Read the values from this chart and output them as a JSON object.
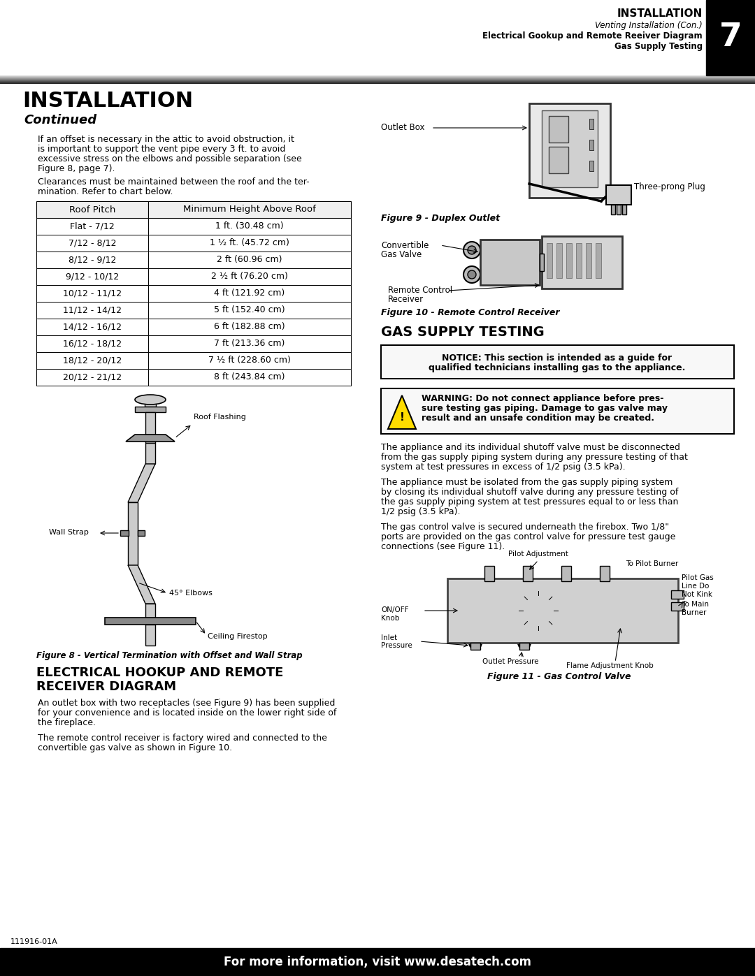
{
  "page_bg": "#ffffff",
  "header_title": "INSTALLATION",
  "header_subtitle1": "Venting Installation (Con.)",
  "header_subtitle2": "Electrical Gookup and Remote Reeiver Diagram",
  "header_subtitle3": "Gas Supply Testing",
  "header_number": "7",
  "section_title": "INSTALLATION",
  "section_subtitle": "Continued",
  "para1_line1": "If an offset is necessary in the attic to avoid obstruction, it",
  "para1_line2": "is important to support the vent pipe every 3 ft. to avoid",
  "para1_line3": "excessive stress on the elbows and possible separation (see",
  "para1_line4": "Figure 8, page 7).",
  "para2_line1": "Clearances must be maintained between the roof and the ter-",
  "para2_line2": "mination. Refer to chart below.",
  "table_headers": [
    "Roof Pitch",
    "Minimum Height Above Roof"
  ],
  "table_rows": [
    [
      "Flat - 7/12",
      "1 ft. (30.48 cm)"
    ],
    [
      "7/12 - 8/12",
      "1 ½ ft. (45.72 cm)"
    ],
    [
      "8/12 - 9/12",
      "2 ft (60.96 cm)"
    ],
    [
      "9/12 - 10/12",
      "2 ½ ft (76.20 cm)"
    ],
    [
      "10/12 - 11/12",
      "4 ft (121.92 cm)"
    ],
    [
      "11/12 - 14/12",
      "5 ft (152.40 cm)"
    ],
    [
      "14/12 - 16/12",
      "6 ft (182.88 cm)"
    ],
    [
      "16/12 - 18/12",
      "7 ft (213.36 cm)"
    ],
    [
      "18/12 - 20/12",
      "7 ½ ft (228.60 cm)"
    ],
    [
      "20/12 - 21/12",
      "8 ft (243.84 cm)"
    ]
  ],
  "fig8_caption": "Figure 8 - Vertical Termination with Offset and Wall Strap",
  "elec_title1": "ELECTRICAL HOOKUP AND REMOTE",
  "elec_title2": "RECEIVER DIAGRAM",
  "elec_para1_l1": "An outlet box with two receptacles (see Figure 9) has been supplied",
  "elec_para1_l2": "for your convenience and is located inside on the lower right side of",
  "elec_para1_l3": "the fireplace.",
  "elec_para2_l1": "The remote control receiver is factory wired and connected to the",
  "elec_para2_l2": "convertible gas valve as shown in Figure 10.",
  "fig9_caption": "Figure 9 - Duplex Outlet",
  "fig10_caption": "Figure 10 - Remote Control Receiver",
  "gas_title": "GAS SUPPLY TESTING",
  "notice_l1": "NOTICE: This section is intended as a guide for",
  "notice_l2": "qualified technicians installing gas to the appliance.",
  "warning_l1": "WARNING: Do not connect appliance before pres-",
  "warning_l2": "sure testing gas piping. Damage to gas valve may",
  "warning_l3": "result and an unsafe condition may be created.",
  "gas_p1_l1": "The appliance and its individual shutoff valve must be disconnected",
  "gas_p1_l2": "from the gas supply piping system during any pressure testing of that",
  "gas_p1_l3": "system at test pressures in excess of 1/2 psig (3.5 kPa).",
  "gas_p2_l1": "The appliance must be isolated from the gas supply piping system",
  "gas_p2_l2": "by closing its individual shutoff valve during any pressure testing of",
  "gas_p2_l3": "the gas supply piping system at test pressures equal to or less than",
  "gas_p2_l4": "1/2 psig (3.5 kPa).",
  "gas_p3_l1": "The gas control valve is secured underneath the firebox. Two 1/8\"",
  "gas_p3_l2": "ports are provided on the gas control valve for pressure test gauge",
  "gas_p3_l3": "connections (see Figure 11).",
  "fig11_caption": "Figure 11 - Gas Control Valve",
  "footer_text": "For more information, visit www.desatech.com",
  "part_number": "111916-01A",
  "label_outlet_box": "Outlet Box",
  "label_three_prong": "Three-prong Plug",
  "label_convertible_l1": "Convertible",
  "label_convertible_l2": "Gas Valve",
  "label_remote_l1": "Remote Control",
  "label_remote_l2": "Receiver",
  "label_roof_flashing": "Roof Flashing",
  "label_wall_strap": "Wall Strap",
  "label_45_elbows": "45° Elbows",
  "label_ceiling_firestop": "Ceiling Firestop",
  "lbl_pilot_adj": "Pilot Adjustment",
  "lbl_to_pilot": "To Pilot Burner",
  "lbl_on_off_l1": "ON/OFF",
  "lbl_on_off_l2": "Knob",
  "lbl_pilot_gas_l1": "Pilot Gas",
  "lbl_pilot_gas_l2": "Line Do",
  "lbl_pilot_gas_l3": "Not Kink",
  "lbl_inlet_l1": "Inlet",
  "lbl_inlet_l2": "Pressure",
  "lbl_outlet": "Outlet Pressure",
  "lbl_flame_adj": "Flame Adjustment Knob",
  "lbl_to_main_l1": "To Main",
  "lbl_to_main_l2": "Burner"
}
